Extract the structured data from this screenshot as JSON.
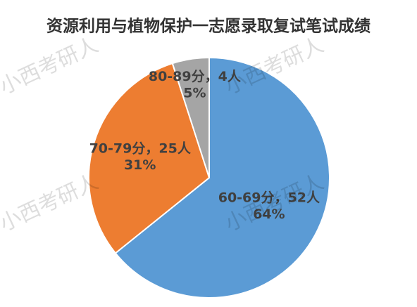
{
  "chart_data": {
    "type": "pie",
    "title": "资源利用与植物保护一志愿录取复试笔试成绩",
    "watermark": "小西考研人",
    "categories": [
      "60-69分",
      "70-79分",
      "80-89分"
    ],
    "label_separator": "，",
    "values": [
      52,
      25,
      4
    ],
    "value_labels": [
      "52人",
      "25人",
      "4人"
    ],
    "percent_labels": [
      "64%",
      "31%",
      "5%"
    ],
    "colors": [
      "#5b9bd5",
      "#ed7d31",
      "#a5a5a5"
    ]
  }
}
